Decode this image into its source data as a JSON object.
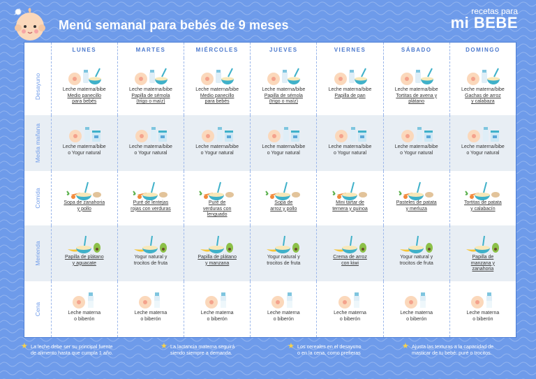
{
  "header": {
    "title": "Menú semanal para bebés de 9 meses",
    "brand_top": "recetas para",
    "brand_bottom": "mi BEBE"
  },
  "days": [
    "LUNES",
    "MARTES",
    "MIÉRCOLES",
    "JUEVES",
    "VIERNES",
    "SÁBADO",
    "DOMINGO"
  ],
  "rows": [
    {
      "label": "Desayuno",
      "icon": "bottle-bowl-icon",
      "cells": [
        {
          "plain": "Leche materna/bibe",
          "u": [
            "Medio panecillo",
            "para bebés"
          ]
        },
        {
          "plain": "Leche materna/bibe",
          "u": [
            "Papilla de sémola",
            "(trigo o maíz)"
          ]
        },
        {
          "plain": "Leche materna/bibe",
          "u": [
            "Medio panecillo",
            "para bebés"
          ]
        },
        {
          "plain": "Leche materna/bibe",
          "u": [
            "Papilla de sémola",
            "(trigo o maíz)"
          ]
        },
        {
          "plain": "Leche materna/bibe",
          "u": [
            "Papilla de pan"
          ]
        },
        {
          "plain": "Leche materna/bibe",
          "u": [
            "Tortitas de avena y",
            "plátano"
          ]
        },
        {
          "plain": "Leche materna/bibe",
          "u": [
            "Gachas de arroz",
            "y calabaza"
          ]
        }
      ]
    },
    {
      "label": "Media mañana",
      "icon": "bottle-yogurt-icon",
      "cells": [
        {
          "plain": "Leche materna/bibe",
          "p2": "o Yogur natural"
        },
        {
          "plain": "Leche materna/bibe",
          "p2": "o Yogur natural"
        },
        {
          "plain": "Leche materna/bibe",
          "p2": "o Yogur natural"
        },
        {
          "plain": "Leche materna/bibe",
          "p2": "o Yogur natural"
        },
        {
          "plain": "Leche materna/bibe",
          "p2": "o Yogur natural"
        },
        {
          "plain": "Leche materna/bibe",
          "p2": "o Yogur natural"
        },
        {
          "plain": "Leche materna/bibe",
          "p2": "o Yogur natural"
        }
      ]
    },
    {
      "label": "Comida",
      "icon": "vegetables-icon",
      "cells": [
        {
          "u": [
            "Sopa de zanahoria",
            "y pollo"
          ]
        },
        {
          "u": [
            "Puré de lentejas",
            "rojas con verduras"
          ]
        },
        {
          "u": [
            "Puré de",
            "verduras con",
            "lenguado"
          ]
        },
        {
          "u": [
            "Sopa de",
            "arroz y pollo"
          ]
        },
        {
          "u": [
            "Mini tartar de",
            "ternera y quinoa"
          ]
        },
        {
          "u": [
            "Pasteles de patata",
            "y merluza"
          ]
        },
        {
          "u": [
            "Tortitas de patata",
            "y calabacín"
          ]
        }
      ]
    },
    {
      "label": "Merienda",
      "icon": "fruit-icon",
      "cells": [
        {
          "u": [
            "Papilla de plátano",
            "y aguacate"
          ]
        },
        {
          "plain": "Yogur natural y",
          "p2": "trocitos de fruta"
        },
        {
          "u": [
            "Papilla de plátano",
            "y manzana"
          ]
        },
        {
          "plain": "Yogur natural y",
          "p2": "trocitos de fruta"
        },
        {
          "u": [
            "Crema de arroz",
            "con kiwi"
          ]
        },
        {
          "plain": "Yogur natural y",
          "p2": "trocitos de fruta"
        },
        {
          "u": [
            "Papilla de",
            "manzana y",
            "zanahoria"
          ]
        }
      ]
    },
    {
      "label": "Cena",
      "icon": "breast-bottle-icon",
      "cells": [
        {
          "plain": "Leche materna",
          "p2": "o biberón"
        },
        {
          "plain": "Leche materna",
          "p2": "o biberón"
        },
        {
          "plain": "Leche materna",
          "p2": "o biberón"
        },
        {
          "plain": "Leche materna",
          "p2": "o biberón"
        },
        {
          "plain": "Leche materna",
          "p2": "o biberón"
        },
        {
          "plain": "Leche materna",
          "p2": "o biberón"
        },
        {
          "plain": "Leche materna",
          "p2": "o biberón"
        }
      ]
    }
  ],
  "footer": [
    {
      "l1": "La leche debe ser su principal fuente",
      "l2": "de alimento hasta que cumpla 1 año."
    },
    {
      "l1": "La lactancia materna seguirá",
      "l2": "siendo siempre a demanda."
    },
    {
      "l1": "Los cereales en el desayuno",
      "l2": "o en la cena, como prefieras"
    },
    {
      "l1": "Ajusta las texturas a la capacidad de",
      "l2": "masticar de tu bebé: puré o trocitos."
    }
  ]
}
